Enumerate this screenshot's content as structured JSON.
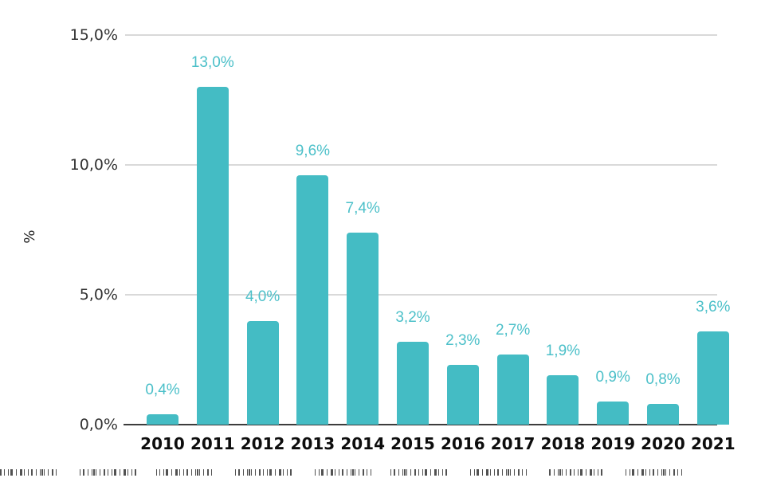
{
  "chart_data": {
    "type": "bar",
    "title": "",
    "xlabel": "",
    "ylabel": "%",
    "categories": [
      "2010",
      "2011",
      "2012",
      "2013",
      "2014",
      "2015",
      "2016",
      "2017",
      "2018",
      "2019",
      "2020",
      "2021"
    ],
    "values": [
      0.4,
      13.0,
      4.0,
      9.6,
      7.4,
      3.2,
      2.3,
      2.7,
      1.9,
      0.9,
      0.8,
      3.6
    ],
    "value_labels": [
      "0,4%",
      "13,0%",
      "4,0%",
      "9,6%",
      "7,4%",
      "3,2%",
      "2,3%",
      "2,7%",
      "1,9%",
      "0,9%",
      "0,8%",
      "3,6%"
    ],
    "y_ticks": [
      {
        "value": 0,
        "label": "0,0%"
      },
      {
        "value": 5,
        "label": "5,0%"
      },
      {
        "value": 10,
        "label": "10,0%"
      },
      {
        "value": 15,
        "label": "15,0%"
      }
    ],
    "ylim": [
      0,
      15
    ],
    "grid": true,
    "legend_position": "none",
    "colors": {
      "bar": "#44BCC4",
      "value_label": "#4CC0C9",
      "gridline": "#D9D9D9",
      "axis_line": "#3C3C3C",
      "y_tick_label": "#333333",
      "x_tick_label": "#0D0D0D"
    }
  }
}
